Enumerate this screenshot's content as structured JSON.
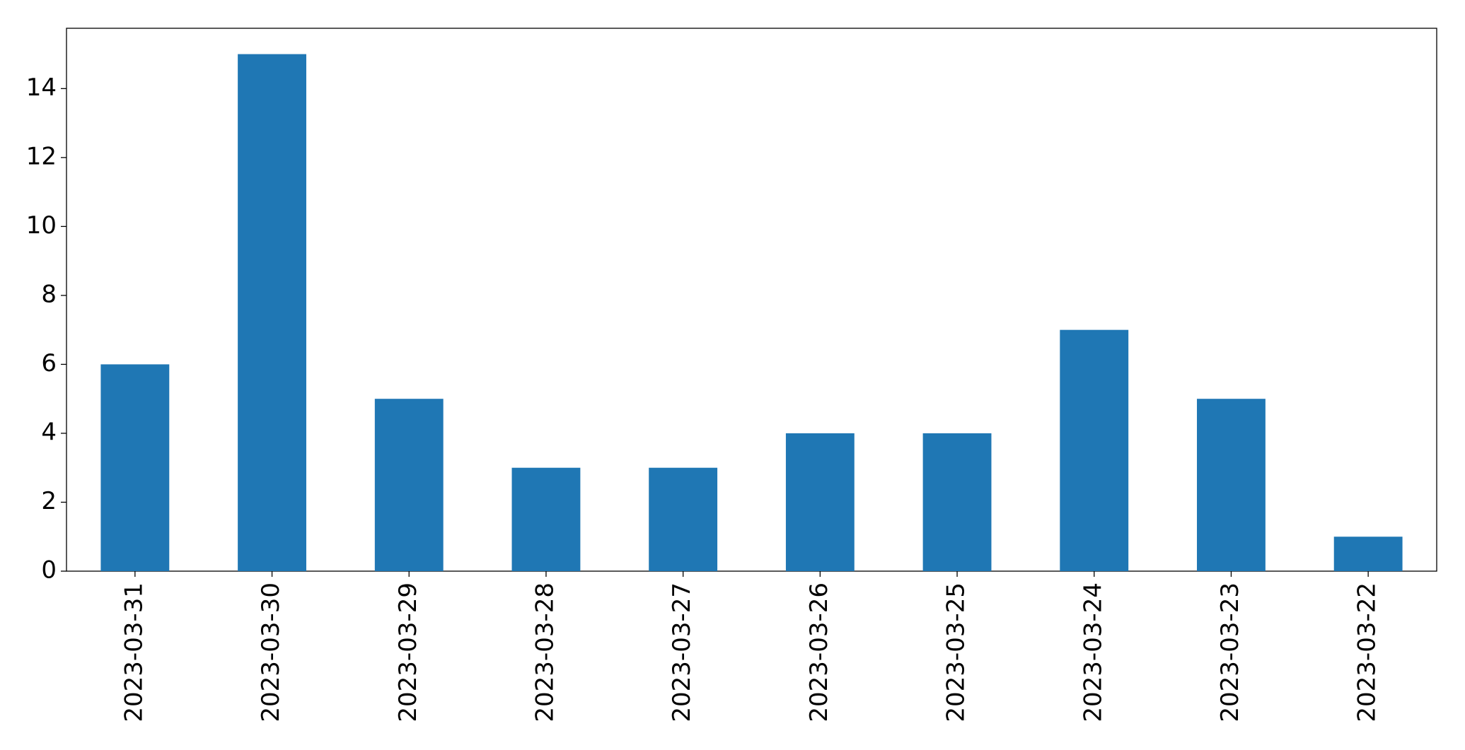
{
  "chart_data": {
    "type": "bar",
    "categories": [
      "2023-03-31",
      "2023-03-30",
      "2023-03-29",
      "2023-03-28",
      "2023-03-27",
      "2023-03-26",
      "2023-03-25",
      "2023-03-24",
      "2023-03-23",
      "2023-03-22"
    ],
    "values": [
      6,
      15,
      5,
      3,
      3,
      4,
      4,
      7,
      5,
      1
    ],
    "color": "#1f77b4",
    "ylim": [
      0,
      15.75
    ],
    "yticks": [
      0,
      2,
      4,
      6,
      8,
      10,
      12,
      14
    ],
    "grid": false
  }
}
